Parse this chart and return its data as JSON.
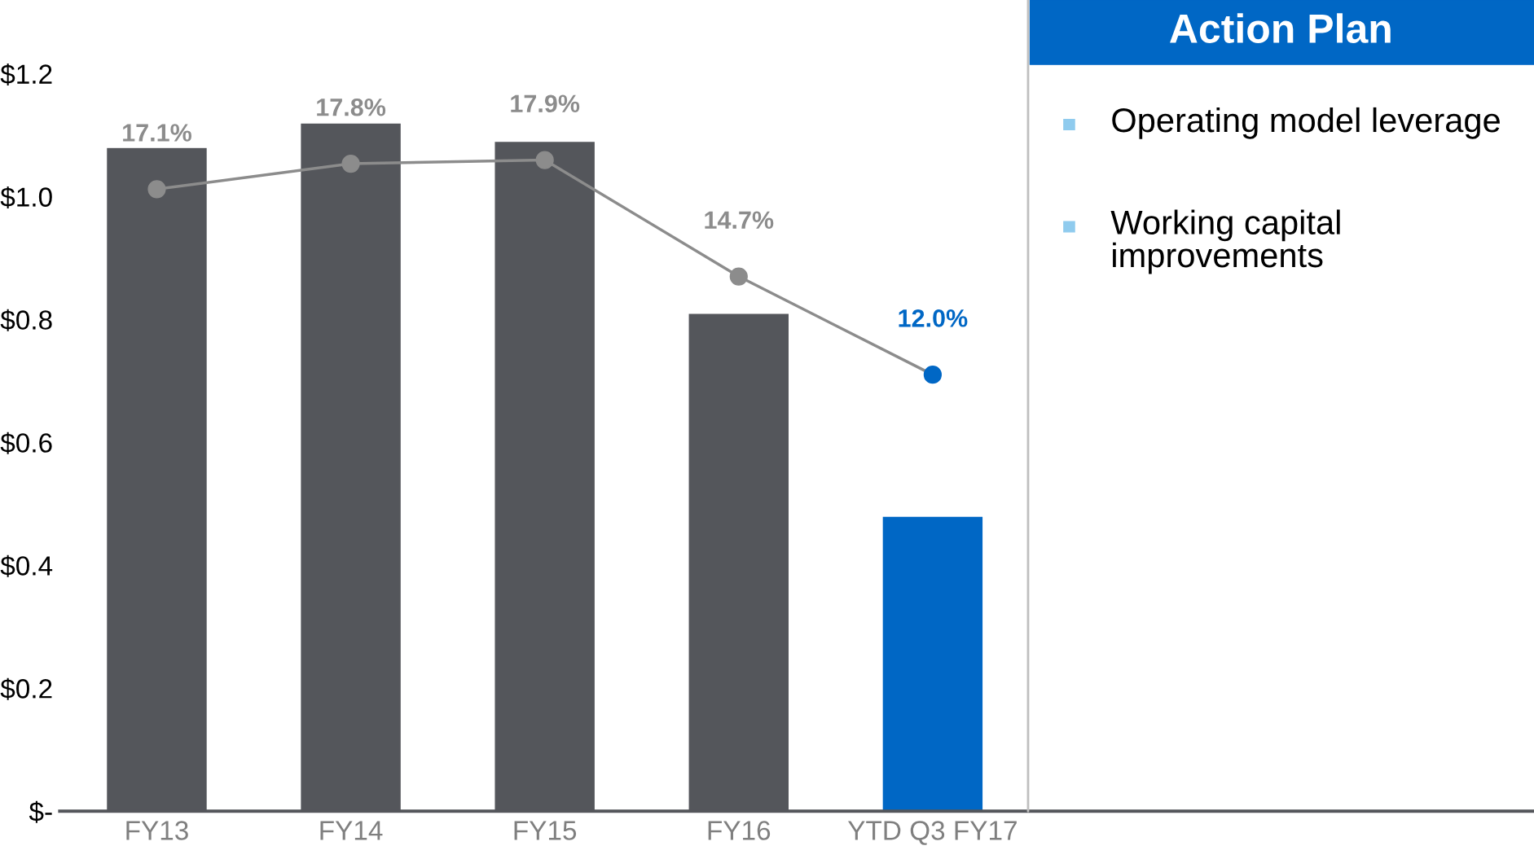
{
  "chart_data": {
    "type": "bar",
    "categories": [
      "FY13",
      "FY14",
      "FY15",
      "FY16",
      "YTD Q3 FY17"
    ],
    "series": [
      {
        "colors": [
          "#54565b",
          "#54565b",
          "#54565b",
          "#54565b",
          "#0067c5"
        ],
        "values": [
          1.08,
          1.12,
          1.09,
          0.81,
          0.48
        ]
      },
      {
        "type": "line",
        "axis": "y2",
        "color": "#8c8c8c",
        "colors": [
          "#8c8c8c",
          "#8c8c8c",
          "#8c8c8c",
          "#8c8c8c",
          "#0067c5"
        ],
        "values": [
          17.1,
          17.8,
          17.9,
          14.7,
          12.0
        ],
        "value_labels": [
          "17.1%",
          "17.8%",
          "17.9%",
          "14.7%",
          "12.0%"
        ]
      }
    ],
    "ylim": [
      0,
      1.32
    ],
    "yticks": [
      {
        "value": 0,
        "label": "$-"
      },
      {
        "value": 0.2,
        "label": "$0.2"
      },
      {
        "value": 0.4,
        "label": "$0.4"
      },
      {
        "value": 0.6,
        "label": "$0.6"
      },
      {
        "value": 0.8,
        "label": "$0.8"
      },
      {
        "value": 1.0,
        "label": "$1.0"
      },
      {
        "value": 1.2,
        "label": "$1.2"
      }
    ],
    "y2lim": [
      0,
      22.3
    ],
    "marker": "circle",
    "grid": false,
    "annotations": [
      "Action Plan",
      "Operating model leverage",
      "Working capital improvements"
    ]
  }
}
